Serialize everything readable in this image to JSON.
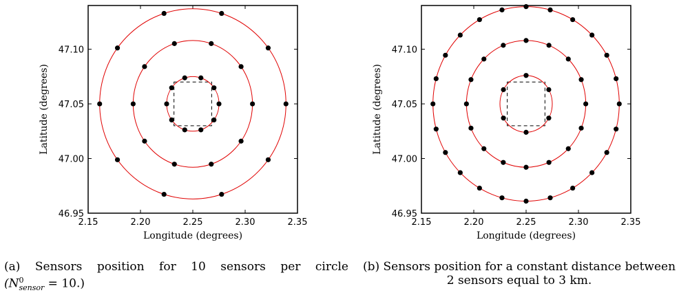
{
  "chart_data": [
    {
      "type": "scatter",
      "title": "",
      "xlabel": "Longitude (degrees)",
      "ylabel": "Latitude (degrees)",
      "xlim": [
        2.15,
        2.35
      ],
      "ylim": [
        46.95,
        47.14
      ],
      "xticks": [
        "2.15",
        "2.20",
        "2.25",
        "2.30",
        "2.35"
      ],
      "yticks": [
        "46.95",
        "47.00",
        "47.05",
        "47.10"
      ],
      "grid": false,
      "center": [
        2.25,
        47.05
      ],
      "square": {
        "x": [
          2.232,
          2.268
        ],
        "y": [
          47.03,
          47.07
        ]
      },
      "circles": [
        {
          "rlon": 0.025,
          "rlat": 0.025,
          "n_sensors": 10
        },
        {
          "rlon": 0.057,
          "rlat": 0.058,
          "n_sensors": 10
        },
        {
          "rlon": 0.089,
          "rlat": 0.087,
          "n_sensors": 10
        }
      ],
      "circle_color": "#e00000",
      "point_color": "#000000"
    },
    {
      "type": "scatter",
      "title": "",
      "xlabel": "Longitude (degrees)",
      "ylabel": "Latitude (degrees)",
      "xlim": [
        2.15,
        2.35
      ],
      "ylim": [
        46.95,
        47.14
      ],
      "xticks": [
        "2.15",
        "2.20",
        "2.25",
        "2.30",
        "2.35"
      ],
      "yticks": [
        "46.95",
        "47.00",
        "47.05",
        "47.10"
      ],
      "grid": false,
      "center": [
        2.25,
        47.05
      ],
      "square": {
        "x": [
          2.232,
          2.268
        ],
        "y": [
          47.03,
          47.07
        ]
      },
      "circles": [
        {
          "rlon": 0.025,
          "rlat": 0.026,
          "n_sensors": 6,
          "phase": 90
        },
        {
          "rlon": 0.057,
          "rlat": 0.058,
          "n_sensors": 16,
          "phase": 90
        },
        {
          "rlon": 0.089,
          "rlat": 0.089,
          "n_sensors": 24,
          "phase": 90
        }
      ],
      "circle_color": "#e00000",
      "point_color": "#000000"
    }
  ],
  "captions": {
    "a_line1": "(a)  Sensors  position  for  10  sensors  per  circle",
    "a_line2_open": "(N",
    "a_line2_sup": "0",
    "a_line2_sub": "sensor",
    "a_line2_rest": " = 10.)",
    "b_line1": "(b) Sensors position for a constant distance between",
    "b_line2": "2 sensors equal to 3 km."
  }
}
